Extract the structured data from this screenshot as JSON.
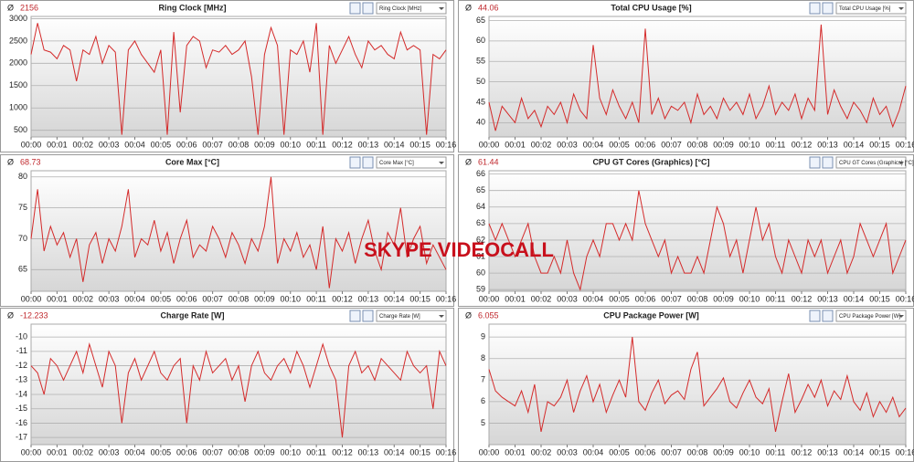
{
  "average_symbol": "Ø",
  "overlay_label": "SKYPE VIDEOCALL",
  "chart_data": [
    {
      "type": "line",
      "title": "Ring Clock [MHz]",
      "average": 2156,
      "grid": true,
      "color": "#d42a2a",
      "ylim": [
        350,
        3050
      ],
      "yticks": [
        500,
        1000,
        1500,
        2000,
        2500,
        3000
      ],
      "xlim": [
        0,
        16
      ],
      "xticks": [
        {
          "value": 0,
          "label": "00:00"
        },
        {
          "value": 1,
          "label": "00:01"
        },
        {
          "value": 2,
          "label": "00:02"
        },
        {
          "value": 3,
          "label": "00:03"
        },
        {
          "value": 4,
          "label": "00:04"
        },
        {
          "value": 5,
          "label": "00:05"
        },
        {
          "value": 6,
          "label": "00:06"
        },
        {
          "value": 7,
          "label": "00:07"
        },
        {
          "value": 8,
          "label": "00:08"
        },
        {
          "value": 9,
          "label": "00:09"
        },
        {
          "value": 10,
          "label": "00:10"
        },
        {
          "value": 11,
          "label": "00:11"
        },
        {
          "value": 12,
          "label": "00:12"
        },
        {
          "value": 13,
          "label": "00:13"
        },
        {
          "value": 14,
          "label": "00:14"
        },
        {
          "value": 15,
          "label": "00:15"
        },
        {
          "value": 16,
          "label": "00:16"
        }
      ],
      "x": [
        0,
        0.25,
        0.5,
        0.75,
        1,
        1.25,
        1.5,
        1.75,
        2,
        2.25,
        2.5,
        2.75,
        3,
        3.25,
        3.5,
        3.75,
        4,
        4.25,
        4.5,
        4.75,
        5,
        5.25,
        5.5,
        5.75,
        6,
        6.25,
        6.5,
        6.75,
        7,
        7.25,
        7.5,
        7.75,
        8,
        8.25,
        8.5,
        8.75,
        9,
        9.25,
        9.5,
        9.75,
        10,
        10.25,
        10.5,
        10.75,
        11,
        11.25,
        11.5,
        11.75,
        12,
        12.25,
        12.5,
        12.75,
        13,
        13.25,
        13.5,
        13.75,
        14,
        14.25,
        14.5,
        14.75,
        15,
        15.25,
        15.5,
        15.75,
        16
      ],
      "values": [
        2200,
        2900,
        2300,
        2250,
        2100,
        2400,
        2300,
        1600,
        2300,
        2200,
        2600,
        2000,
        2400,
        2250,
        400,
        2300,
        2500,
        2200,
        2000,
        1800,
        2300,
        400,
        2700,
        900,
        2400,
        2600,
        2500,
        1900,
        2300,
        2250,
        2400,
        2200,
        2300,
        2500,
        1700,
        400,
        2200,
        2800,
        2400,
        400,
        2300,
        2200,
        2500,
        1800,
        2900,
        400,
        2400,
        2000,
        2300,
        2600,
        2200,
        1900,
        2500,
        2300,
        2400,
        2200,
        2100,
        2700,
        2300,
        2400,
        2300,
        400,
        2200,
        2100,
        2300
      ]
    },
    {
      "type": "line",
      "title": "Total CPU Usage [%]",
      "average": 44.06,
      "grid": true,
      "color": "#d42a2a",
      "ylim": [
        36.5,
        66
      ],
      "yticks": [
        40,
        45,
        50,
        55,
        60,
        65
      ],
      "xlim": [
        0,
        16
      ],
      "xticks": [
        {
          "value": 0,
          "label": "00:00"
        },
        {
          "value": 1,
          "label": "00:01"
        },
        {
          "value": 2,
          "label": "00:02"
        },
        {
          "value": 3,
          "label": "00:03"
        },
        {
          "value": 4,
          "label": "00:04"
        },
        {
          "value": 5,
          "label": "00:05"
        },
        {
          "value": 6,
          "label": "00:06"
        },
        {
          "value": 7,
          "label": "00:07"
        },
        {
          "value": 8,
          "label": "00:08"
        },
        {
          "value": 9,
          "label": "00:09"
        },
        {
          "value": 10,
          "label": "00:10"
        },
        {
          "value": 11,
          "label": "00:11"
        },
        {
          "value": 12,
          "label": "00:12"
        },
        {
          "value": 13,
          "label": "00:13"
        },
        {
          "value": 14,
          "label": "00:14"
        },
        {
          "value": 15,
          "label": "00:15"
        },
        {
          "value": 16,
          "label": "00:16"
        }
      ],
      "x": [
        0,
        0.25,
        0.5,
        0.75,
        1,
        1.25,
        1.5,
        1.75,
        2,
        2.25,
        2.5,
        2.75,
        3,
        3.25,
        3.5,
        3.75,
        4,
        4.25,
        4.5,
        4.75,
        5,
        5.25,
        5.5,
        5.75,
        6,
        6.25,
        6.5,
        6.75,
        7,
        7.25,
        7.5,
        7.75,
        8,
        8.25,
        8.5,
        8.75,
        9,
        9.25,
        9.5,
        9.75,
        10,
        10.25,
        10.5,
        10.75,
        11,
        11.25,
        11.5,
        11.75,
        12,
        12.25,
        12.5,
        12.75,
        13,
        13.25,
        13.5,
        13.75,
        14,
        14.25,
        14.5,
        14.75,
        15,
        15.25,
        15.5,
        15.75,
        16
      ],
      "values": [
        45,
        38,
        44,
        42,
        40,
        46,
        41,
        43,
        39,
        44,
        42,
        45,
        40,
        47,
        43,
        41,
        59,
        46,
        42,
        48,
        44,
        41,
        45,
        40,
        63,
        42,
        46,
        41,
        44,
        43,
        45,
        40,
        47,
        42,
        44,
        41,
        46,
        43,
        45,
        42,
        47,
        41,
        44,
        49,
        42,
        45,
        43,
        47,
        41,
        46,
        43,
        64,
        42,
        48,
        44,
        41,
        45,
        43,
        40,
        46,
        42,
        44,
        39,
        43,
        49
      ]
    },
    {
      "type": "line",
      "title": "Core Max [°C]",
      "average": 68.73,
      "grid": true,
      "color": "#d42a2a",
      "ylim": [
        61.5,
        81
      ],
      "yticks": [
        65,
        70,
        75,
        80
      ],
      "xlim": [
        0,
        16
      ],
      "xticks": [
        {
          "value": 0,
          "label": "00:00"
        },
        {
          "value": 1,
          "label": "00:01"
        },
        {
          "value": 2,
          "label": "00:02"
        },
        {
          "value": 3,
          "label": "00:03"
        },
        {
          "value": 4,
          "label": "00:04"
        },
        {
          "value": 5,
          "label": "00:05"
        },
        {
          "value": 6,
          "label": "00:06"
        },
        {
          "value": 7,
          "label": "00:07"
        },
        {
          "value": 8,
          "label": "00:08"
        },
        {
          "value": 9,
          "label": "00:09"
        },
        {
          "value": 10,
          "label": "00:10"
        },
        {
          "value": 11,
          "label": "00:11"
        },
        {
          "value": 12,
          "label": "00:12"
        },
        {
          "value": 13,
          "label": "00:13"
        },
        {
          "value": 14,
          "label": "00:14"
        },
        {
          "value": 15,
          "label": "00:15"
        },
        {
          "value": 16,
          "label": "00:16"
        }
      ],
      "x": [
        0,
        0.25,
        0.5,
        0.75,
        1,
        1.25,
        1.5,
        1.75,
        2,
        2.25,
        2.5,
        2.75,
        3,
        3.25,
        3.5,
        3.75,
        4,
        4.25,
        4.5,
        4.75,
        5,
        5.25,
        5.5,
        5.75,
        6,
        6.25,
        6.5,
        6.75,
        7,
        7.25,
        7.5,
        7.75,
        8,
        8.25,
        8.5,
        8.75,
        9,
        9.25,
        9.5,
        9.75,
        10,
        10.25,
        10.5,
        10.75,
        11,
        11.25,
        11.5,
        11.75,
        12,
        12.25,
        12.5,
        12.75,
        13,
        13.25,
        13.5,
        13.75,
        14,
        14.25,
        14.5,
        14.75,
        15,
        15.25,
        15.5,
        15.75,
        16
      ],
      "values": [
        70,
        78,
        68,
        72,
        69,
        71,
        67,
        70,
        63,
        69,
        71,
        66,
        70,
        68,
        72,
        78,
        67,
        70,
        69,
        73,
        68,
        71,
        66,
        70,
        73,
        67,
        69,
        68,
        72,
        70,
        67,
        71,
        69,
        66,
        70,
        68,
        72,
        80,
        66,
        70,
        68,
        71,
        67,
        69,
        65,
        72,
        62,
        70,
        68,
        71,
        66,
        70,
        73,
        68,
        65,
        71,
        69,
        75,
        67,
        70,
        72,
        66,
        69,
        67,
        65
      ]
    },
    {
      "type": "line",
      "title": "CPU GT Cores (Graphics) [°C]",
      "average": 61.44,
      "grid": true,
      "color": "#d42a2a",
      "ylim": [
        58.9,
        66.2
      ],
      "yticks": [
        59,
        60,
        61,
        62,
        63,
        64,
        65,
        66
      ],
      "xlim": [
        0,
        16
      ],
      "xticks": [
        {
          "value": 0,
          "label": "00:00"
        },
        {
          "value": 1,
          "label": "00:01"
        },
        {
          "value": 2,
          "label": "00:02"
        },
        {
          "value": 3,
          "label": "00:03"
        },
        {
          "value": 4,
          "label": "00:04"
        },
        {
          "value": 5,
          "label": "00:05"
        },
        {
          "value": 6,
          "label": "00:06"
        },
        {
          "value": 7,
          "label": "00:07"
        },
        {
          "value": 8,
          "label": "00:08"
        },
        {
          "value": 9,
          "label": "00:09"
        },
        {
          "value": 10,
          "label": "00:10"
        },
        {
          "value": 11,
          "label": "00:11"
        },
        {
          "value": 12,
          "label": "00:12"
        },
        {
          "value": 13,
          "label": "00:13"
        },
        {
          "value": 14,
          "label": "00:14"
        },
        {
          "value": 15,
          "label": "00:15"
        },
        {
          "value": 16,
          "label": "00:16"
        }
      ],
      "x": [
        0,
        0.25,
        0.5,
        0.75,
        1,
        1.25,
        1.5,
        1.75,
        2,
        2.25,
        2.5,
        2.75,
        3,
        3.25,
        3.5,
        3.75,
        4,
        4.25,
        4.5,
        4.75,
        5,
        5.25,
        5.5,
        5.75,
        6,
        6.25,
        6.5,
        6.75,
        7,
        7.25,
        7.5,
        7.75,
        8,
        8.25,
        8.5,
        8.75,
        9,
        9.25,
        9.5,
        9.75,
        10,
        10.25,
        10.5,
        10.75,
        11,
        11.25,
        11.5,
        11.75,
        12,
        12.25,
        12.5,
        12.75,
        13,
        13.25,
        13.5,
        13.75,
        14,
        14.25,
        14.5,
        14.75,
        15,
        15.25,
        15.5,
        15.75,
        16
      ],
      "values": [
        63,
        62,
        63,
        62,
        61,
        62,
        63,
        61,
        60,
        60,
        61,
        60,
        62,
        60,
        59,
        61,
        62,
        61,
        63,
        63,
        62,
        63,
        62,
        65,
        63,
        62,
        61,
        62,
        60,
        61,
        60,
        60,
        61,
        60,
        62,
        64,
        63,
        61,
        62,
        60,
        62,
        64,
        62,
        63,
        61,
        60,
        62,
        61,
        60,
        62,
        61,
        62,
        60,
        61,
        62,
        60,
        61,
        63,
        62,
        61,
        62,
        63,
        60,
        61,
        62
      ]
    },
    {
      "type": "line",
      "title": "Charge Rate [W]",
      "average": -12.233,
      "grid": true,
      "color": "#d42a2a",
      "ylim": [
        -17.5,
        -9.1
      ],
      "yticks": [
        -17,
        -16,
        -15,
        -14,
        -13,
        -12,
        -11,
        -10
      ],
      "xlim": [
        0,
        16
      ],
      "xticks": [
        {
          "value": 0,
          "label": "00:00"
        },
        {
          "value": 1,
          "label": "00:01"
        },
        {
          "value": 2,
          "label": "00:02"
        },
        {
          "value": 3,
          "label": "00:03"
        },
        {
          "value": 4,
          "label": "00:04"
        },
        {
          "value": 5,
          "label": "00:05"
        },
        {
          "value": 6,
          "label": "00:06"
        },
        {
          "value": 7,
          "label": "00:07"
        },
        {
          "value": 8,
          "label": "00:08"
        },
        {
          "value": 9,
          "label": "00:09"
        },
        {
          "value": 10,
          "label": "00:10"
        },
        {
          "value": 11,
          "label": "00:11"
        },
        {
          "value": 12,
          "label": "00:12"
        },
        {
          "value": 13,
          "label": "00:13"
        },
        {
          "value": 14,
          "label": "00:14"
        },
        {
          "value": 15,
          "label": "00:15"
        },
        {
          "value": 16,
          "label": "00:16"
        }
      ],
      "x": [
        0,
        0.25,
        0.5,
        0.75,
        1,
        1.25,
        1.5,
        1.75,
        2,
        2.25,
        2.5,
        2.75,
        3,
        3.25,
        3.5,
        3.75,
        4,
        4.25,
        4.5,
        4.75,
        5,
        5.25,
        5.5,
        5.75,
        6,
        6.25,
        6.5,
        6.75,
        7,
        7.25,
        7.5,
        7.75,
        8,
        8.25,
        8.5,
        8.75,
        9,
        9.25,
        9.5,
        9.75,
        10,
        10.25,
        10.5,
        10.75,
        11,
        11.25,
        11.5,
        11.75,
        12,
        12.25,
        12.5,
        12.75,
        13,
        13.25,
        13.5,
        13.75,
        14,
        14.25,
        14.5,
        14.75,
        15,
        15.25,
        15.5,
        15.75,
        16
      ],
      "values": [
        -12,
        -12.5,
        -14,
        -11.5,
        -12,
        -13,
        -12,
        -11,
        -12.5,
        -10.5,
        -12,
        -13.5,
        -11,
        -12,
        -16,
        -12.5,
        -11.5,
        -13,
        -12,
        -11,
        -12.5,
        -13,
        -12,
        -11.5,
        -16,
        -12,
        -13,
        -11,
        -12.5,
        -12,
        -11.5,
        -13,
        -12,
        -14.5,
        -12,
        -11,
        -12.5,
        -13,
        -12,
        -11.5,
        -12.5,
        -11,
        -12,
        -13.5,
        -12,
        -10.5,
        -12,
        -13,
        -17,
        -12,
        -11,
        -12.5,
        -12,
        -13,
        -11.5,
        -12,
        -12.5,
        -13,
        -11,
        -12,
        -12.5,
        -12,
        -15,
        -11,
        -12
      ]
    },
    {
      "type": "line",
      "title": "CPU Package Power [W]",
      "average": 6.055,
      "grid": true,
      "color": "#d42a2a",
      "ylim": [
        4,
        9.6
      ],
      "yticks": [
        5,
        6,
        7,
        8,
        9
      ],
      "xlim": [
        0,
        16
      ],
      "xticks": [
        {
          "value": 0,
          "label": "00:00"
        },
        {
          "value": 1,
          "label": "00:01"
        },
        {
          "value": 2,
          "label": "00:02"
        },
        {
          "value": 3,
          "label": "00:03"
        },
        {
          "value": 4,
          "label": "00:04"
        },
        {
          "value": 5,
          "label": "00:05"
        },
        {
          "value": 6,
          "label": "00:06"
        },
        {
          "value": 7,
          "label": "00:07"
        },
        {
          "value": 8,
          "label": "00:08"
        },
        {
          "value": 9,
          "label": "00:09"
        },
        {
          "value": 10,
          "label": "00:10"
        },
        {
          "value": 11,
          "label": "00:11"
        },
        {
          "value": 12,
          "label": "00:12"
        },
        {
          "value": 13,
          "label": "00:13"
        },
        {
          "value": 14,
          "label": "00:14"
        },
        {
          "value": 15,
          "label": "00:15"
        },
        {
          "value": 16,
          "label": "00:16"
        }
      ],
      "x": [
        0,
        0.25,
        0.5,
        0.75,
        1,
        1.25,
        1.5,
        1.75,
        2,
        2.25,
        2.5,
        2.75,
        3,
        3.25,
        3.5,
        3.75,
        4,
        4.25,
        4.5,
        4.75,
        5,
        5.25,
        5.5,
        5.75,
        6,
        6.25,
        6.5,
        6.75,
        7,
        7.25,
        7.5,
        7.75,
        8,
        8.25,
        8.5,
        8.75,
        9,
        9.25,
        9.5,
        9.75,
        10,
        10.25,
        10.5,
        10.75,
        11,
        11.25,
        11.5,
        11.75,
        12,
        12.25,
        12.5,
        12.75,
        13,
        13.25,
        13.5,
        13.75,
        14,
        14.25,
        14.5,
        14.75,
        15,
        15.25,
        15.5,
        15.75,
        16
      ],
      "values": [
        7.5,
        6.5,
        6.2,
        6,
        5.8,
        6.5,
        5.5,
        6.8,
        4.6,
        6,
        5.8,
        6.2,
        7,
        5.5,
        6.5,
        7.2,
        6,
        6.8,
        5.5,
        6.3,
        7,
        6.2,
        9,
        6,
        5.6,
        6.4,
        7,
        5.9,
        6.3,
        6.5,
        6.1,
        7.5,
        8.3,
        5.8,
        6.2,
        6.6,
        7.1,
        6,
        5.7,
        6.4,
        7,
        6.2,
        5.9,
        6.6,
        4.6,
        6,
        7.3,
        5.5,
        6.1,
        6.8,
        6.2,
        7,
        5.8,
        6.5,
        6.1,
        7.2,
        6,
        5.6,
        6.4,
        5.3,
        6,
        5.5,
        6.2,
        5.3,
        5.7
      ]
    }
  ]
}
